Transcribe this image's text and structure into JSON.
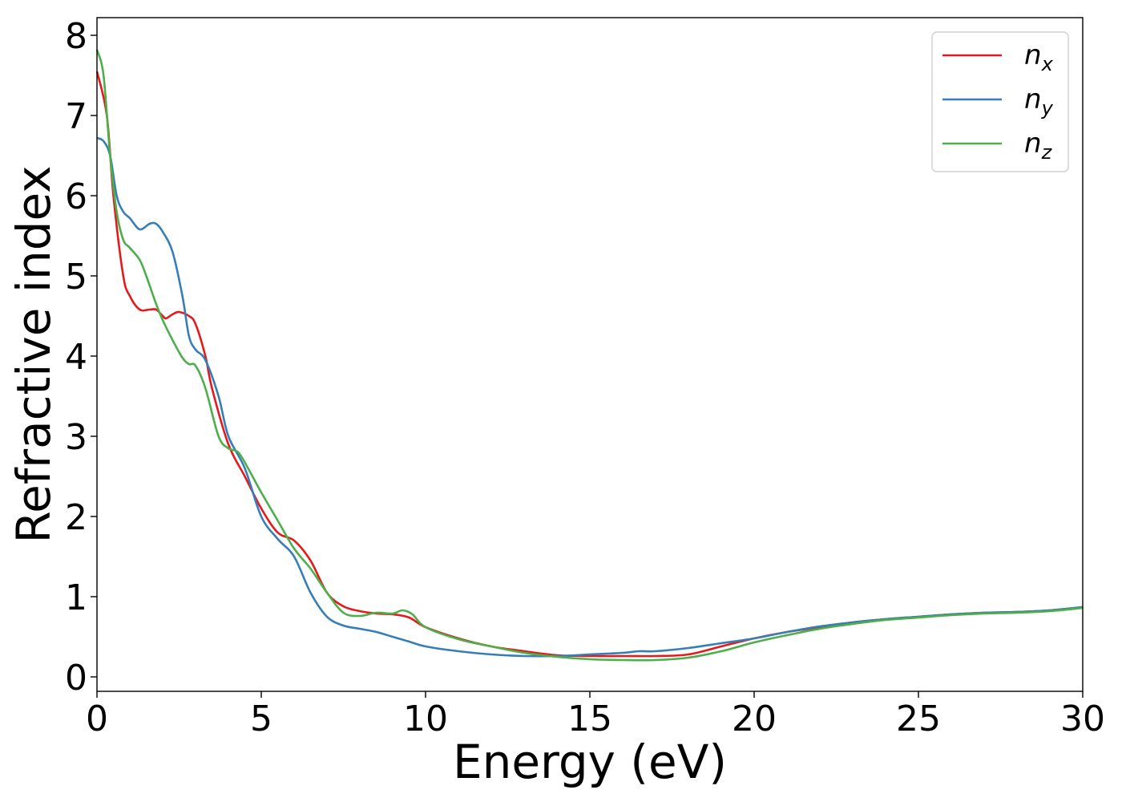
{
  "chart_data": {
    "type": "line",
    "title": "",
    "xlabel": "Energy (eV)",
    "ylabel": "Refractive index",
    "xlim": [
      0,
      30
    ],
    "ylim": [
      -0.18,
      8.22
    ],
    "xticks": [
      0,
      5,
      10,
      15,
      20,
      25,
      30
    ],
    "yticks": [
      0,
      1,
      2,
      3,
      4,
      5,
      6,
      7,
      8
    ],
    "grid": false,
    "legend_position": "top-right",
    "series": [
      {
        "name": "n_x",
        "label_main": "n",
        "label_sub": "x",
        "color": "#e41a1c",
        "x": [
          0,
          0.3,
          0.5,
          0.8,
          1.0,
          1.3,
          1.6,
          1.8,
          2.0,
          2.1,
          2.3,
          2.5,
          2.8,
          3.0,
          3.3,
          3.5,
          4.0,
          4.5,
          5.0,
          5.5,
          6.0,
          6.5,
          7.0,
          7.5,
          8.0,
          8.5,
          9.0,
          9.5,
          10,
          11,
          12,
          13,
          14,
          15,
          16,
          17,
          18,
          19,
          20,
          21,
          22,
          23,
          24,
          25,
          26,
          27,
          28,
          29,
          30
        ],
        "y": [
          7.55,
          7.0,
          6.0,
          5.0,
          4.75,
          4.58,
          4.58,
          4.58,
          4.5,
          4.47,
          4.52,
          4.55,
          4.5,
          4.4,
          4.0,
          3.6,
          2.9,
          2.5,
          2.1,
          1.8,
          1.7,
          1.45,
          1.05,
          0.88,
          0.82,
          0.79,
          0.78,
          0.74,
          0.62,
          0.48,
          0.38,
          0.32,
          0.27,
          0.26,
          0.26,
          0.26,
          0.28,
          0.38,
          0.48,
          0.56,
          0.62,
          0.68,
          0.72,
          0.75,
          0.78,
          0.8,
          0.81,
          0.83,
          0.87
        ]
      },
      {
        "name": "n_y",
        "label_main": "n",
        "label_sub": "y",
        "color": "#377eb8",
        "x": [
          0,
          0.2,
          0.4,
          0.6,
          0.8,
          1.0,
          1.3,
          1.6,
          1.8,
          2.0,
          2.3,
          2.6,
          2.8,
          3.0,
          3.3,
          3.7,
          4.0,
          4.5,
          5.0,
          5.5,
          6.0,
          6.5,
          7.0,
          7.5,
          8.0,
          8.5,
          9.0,
          9.5,
          10,
          11,
          12,
          13,
          14,
          15,
          16,
          16.5,
          17,
          18,
          19,
          20,
          21,
          22,
          23,
          24,
          25,
          26,
          27,
          28,
          29,
          30
        ],
        "y": [
          6.72,
          6.68,
          6.5,
          6.0,
          5.8,
          5.72,
          5.58,
          5.65,
          5.65,
          5.55,
          5.3,
          4.75,
          4.25,
          4.08,
          3.95,
          3.5,
          3.0,
          2.6,
          2.0,
          1.72,
          1.5,
          1.05,
          0.75,
          0.64,
          0.6,
          0.56,
          0.5,
          0.44,
          0.38,
          0.32,
          0.28,
          0.26,
          0.26,
          0.28,
          0.3,
          0.32,
          0.32,
          0.36,
          0.42,
          0.48,
          0.56,
          0.63,
          0.68,
          0.72,
          0.75,
          0.78,
          0.8,
          0.81,
          0.83,
          0.87
        ]
      },
      {
        "name": "n_z",
        "label_main": "n",
        "label_sub": "z",
        "color": "#4daf4a",
        "x": [
          0,
          0.2,
          0.4,
          0.6,
          0.8,
          1.0,
          1.3,
          1.5,
          1.8,
          2.0,
          2.3,
          2.6,
          2.8,
          3.0,
          3.3,
          3.7,
          4.0,
          4.3,
          4.6,
          5.0,
          5.5,
          6.0,
          6.5,
          7.0,
          7.5,
          8.0,
          8.5,
          9.0,
          9.3,
          9.6,
          10,
          11,
          12,
          13,
          14,
          15,
          16,
          17,
          18,
          19,
          20,
          21,
          22,
          23,
          24,
          25,
          26,
          27,
          28,
          29,
          30
        ],
        "y": [
          7.82,
          7.5,
          6.5,
          5.8,
          5.45,
          5.35,
          5.2,
          5.0,
          4.65,
          4.45,
          4.2,
          3.98,
          3.9,
          3.88,
          3.6,
          3.0,
          2.85,
          2.8,
          2.6,
          2.3,
          1.95,
          1.6,
          1.35,
          1.05,
          0.8,
          0.76,
          0.8,
          0.79,
          0.83,
          0.78,
          0.62,
          0.47,
          0.38,
          0.3,
          0.25,
          0.22,
          0.21,
          0.21,
          0.24,
          0.32,
          0.43,
          0.52,
          0.6,
          0.66,
          0.71,
          0.74,
          0.77,
          0.79,
          0.8,
          0.82,
          0.86
        ]
      }
    ]
  }
}
